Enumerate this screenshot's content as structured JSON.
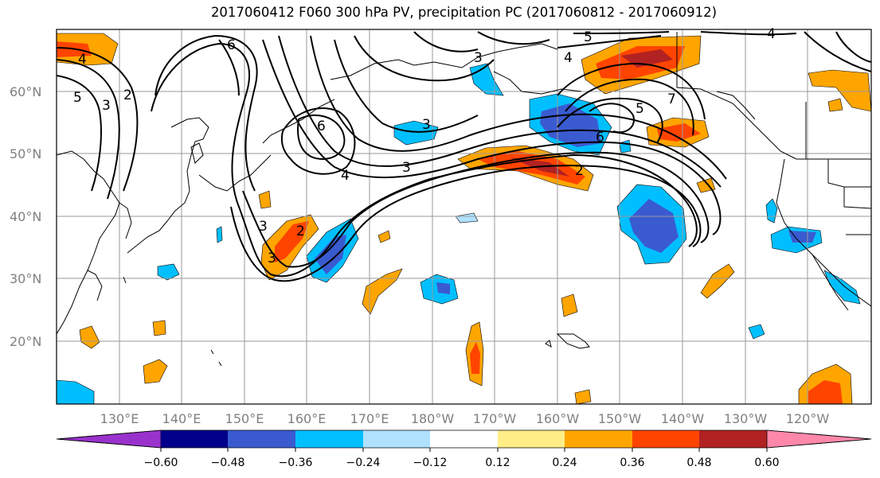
{
  "title": "2017060412 F060 300 hPa PV, precipitation PC (2017060812 - 2017060912)",
  "map": {
    "lat_labels": [
      "60°N",
      "50°N",
      "40°N",
      "30°N",
      "20°N"
    ],
    "lon_labels": [
      "130°E",
      "140°E",
      "150°E",
      "160°E",
      "170°E",
      "180°W",
      "170°W",
      "160°W",
      "150°W",
      "140°W",
      "130°W",
      "120°W"
    ],
    "contour_labels": [
      "4",
      "5",
      "3",
      "2",
      "6",
      "3",
      "4",
      "3",
      "3",
      "2",
      "3",
      "5",
      "4",
      "7",
      "6",
      "5",
      "6",
      "3",
      "2",
      "4"
    ],
    "fill_colors": {
      "neg_strong": "#3a5bd0",
      "neg_mid": "#00bfff",
      "neg_weak": "#b0e2ff",
      "pos_weak": "#ffee88",
      "pos_mid": "#ffa500",
      "pos_strong": "#ff4400",
      "pos_max": "#b22222"
    }
  },
  "colorbar": {
    "colors": [
      "#9932cc",
      "#00008b",
      "#3a5bd0",
      "#00bfff",
      "#b0e2ff",
      "#ffffff",
      "#ffee88",
      "#ffa500",
      "#ff4400",
      "#b22222",
      "#ff88aa"
    ],
    "tick_labels": [
      "−0.60",
      "−0.48",
      "−0.36",
      "−0.24",
      "−0.12",
      "0.12",
      "0.24",
      "0.36",
      "0.48",
      "0.60"
    ]
  }
}
